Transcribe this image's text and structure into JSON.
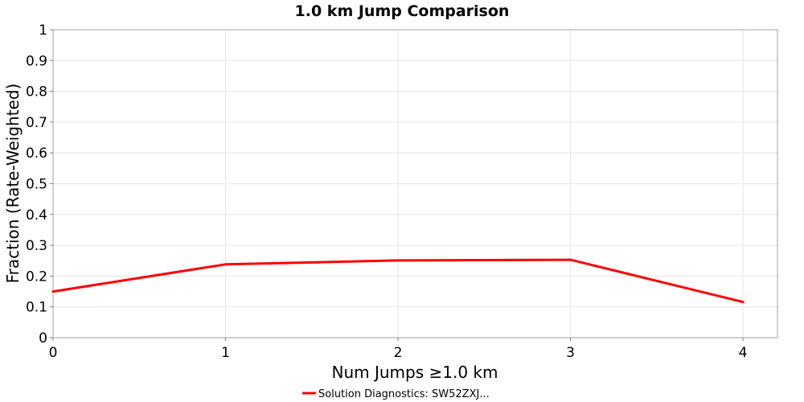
{
  "chart_data": {
    "type": "line",
    "title": "1.0 km Jump Comparison",
    "xlabel": "Num Jumps ≥1.0 km",
    "ylabel": "Fraction (Rate-Weighted)",
    "xlim": [
      0,
      4.2
    ],
    "ylim": [
      0,
      1
    ],
    "x_ticks": [
      "0",
      "1",
      "2",
      "3",
      "4"
    ],
    "y_ticks": [
      "0",
      "0.1",
      "0.2",
      "0.3",
      "0.4",
      "0.5",
      "0.6",
      "0.7",
      "0.8",
      "0.9",
      "1"
    ],
    "grid": true,
    "legend_position": "bottom-center",
    "series": [
      {
        "name": "Solution Diagnostics: SW52ZXJ...",
        "color": "#ff0000",
        "x": [
          0,
          1,
          2,
          3,
          4
        ],
        "y": [
          0.15,
          0.238,
          0.251,
          0.253,
          0.116
        ]
      }
    ]
  }
}
